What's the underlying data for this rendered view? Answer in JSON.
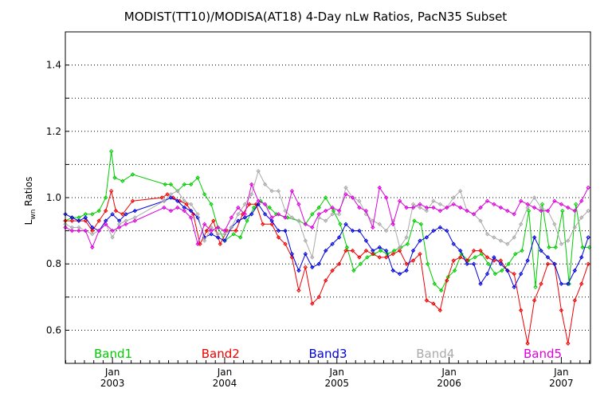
{
  "chart_data": {
    "type": "line",
    "title": "MODIST(TT10)/MODISA(AT18) 4-Day nLw Ratios, PacN35 Subset",
    "ylabel_main": "L",
    "ylabel_sub": "wn",
    "ylabel_rest": " Ratios",
    "ylim": [
      0.5,
      1.5
    ],
    "yticks": [
      "0.6",
      "0.8",
      "1.0",
      "1.2",
      "1.4"
    ],
    "ytick_values": [
      0.6,
      0.8,
      1.0,
      1.2,
      1.4
    ],
    "xlim": [
      2002.58,
      2007.26
    ],
    "xticks": [
      {
        "month": "Jan",
        "year": "2003",
        "x": 2003.0
      },
      {
        "month": "Jan",
        "year": "2004",
        "x": 2004.0
      },
      {
        "month": "Jan",
        "year": "2005",
        "x": 2005.0
      },
      {
        "month": "Jan",
        "year": "2006",
        "x": 2006.0
      },
      {
        "month": "Jan",
        "year": "2007",
        "x": 2007.0
      }
    ],
    "grid": true,
    "legend_position": "bottom",
    "series": [
      {
        "name": "Band1",
        "color": "#00cc00",
        "x": [
          2002.58,
          2002.64,
          2002.7,
          2002.76,
          2002.82,
          2002.88,
          2002.94,
          2002.99,
          2003.02,
          2003.09,
          2003.18,
          2003.47,
          2003.52,
          2003.58,
          2003.64,
          2003.7,
          2003.76,
          2003.82,
          2003.88,
          2003.94,
          2004.0,
          2004.08,
          2004.14,
          2004.2,
          2004.26,
          2004.32,
          2004.4,
          2004.46,
          2004.56,
          2004.66,
          2004.72,
          2004.78,
          2004.84,
          2004.9,
          2004.97,
          2005.03,
          2005.09,
          2005.15,
          2005.21,
          2005.27,
          2005.33,
          2005.39,
          2005.45,
          2005.51,
          2005.57,
          2005.63,
          2005.69,
          2005.75,
          2005.81,
          2005.87,
          2005.93,
          2005.99,
          2006.05,
          2006.11,
          2006.17,
          2006.23,
          2006.29,
          2006.35,
          2006.41,
          2006.47,
          2006.53,
          2006.59,
          2006.65,
          2006.71,
          2006.77,
          2006.83,
          2006.89,
          2006.95,
          2007.01,
          2007.07,
          2007.13,
          2007.19,
          2007.25
        ],
        "values": [
          0.93,
          0.94,
          0.94,
          0.95,
          0.95,
          0.96,
          1.0,
          1.14,
          1.06,
          1.05,
          1.07,
          1.04,
          1.04,
          1.02,
          1.04,
          1.04,
          1.06,
          1.01,
          0.98,
          0.91,
          0.87,
          0.89,
          0.88,
          0.93,
          0.97,
          0.99,
          0.97,
          0.95,
          0.94,
          0.93,
          0.92,
          0.95,
          0.97,
          1.0,
          0.96,
          0.92,
          0.85,
          0.78,
          0.8,
          0.82,
          0.83,
          0.84,
          0.83,
          0.84,
          0.85,
          0.86,
          0.93,
          0.92,
          0.8,
          0.74,
          0.72,
          0.76,
          0.78,
          0.83,
          0.81,
          0.82,
          0.83,
          0.8,
          0.77,
          0.78,
          0.8,
          0.83,
          0.84,
          0.96,
          0.73,
          0.98,
          0.85,
          0.85,
          0.96,
          0.74,
          0.98,
          0.85,
          0.85
        ]
      },
      {
        "name": "Band2",
        "color": "#ee0000",
        "x": [
          2002.58,
          2002.64,
          2002.7,
          2002.76,
          2002.82,
          2002.88,
          2002.94,
          2002.99,
          2003.03,
          2003.09,
          2003.18,
          2003.44,
          2003.49,
          2003.54,
          2003.6,
          2003.66,
          2003.72,
          2003.78,
          2003.84,
          2003.9,
          2003.96,
          2004.02,
          2004.1,
          2004.16,
          2004.22,
          2004.28,
          2004.34,
          2004.42,
          2004.48,
          2004.54,
          2004.6,
          2004.66,
          2004.72,
          2004.78,
          2004.84,
          2004.9,
          2004.96,
          2005.02,
          2005.08,
          2005.14,
          2005.2,
          2005.26,
          2005.32,
          2005.38,
          2005.44,
          2005.5,
          2005.56,
          2005.62,
          2005.68,
          2005.74,
          2005.8,
          2005.86,
          2005.92,
          2005.98,
          2006.04,
          2006.1,
          2006.16,
          2006.22,
          2006.28,
          2006.34,
          2006.4,
          2006.46,
          2006.52,
          2006.58,
          2006.64,
          2006.7,
          2006.76,
          2006.82,
          2006.88,
          2006.94,
          2007.0,
          2007.06,
          2007.12,
          2007.18,
          2007.24
        ],
        "values": [
          0.93,
          0.93,
          0.93,
          0.93,
          0.9,
          0.93,
          0.96,
          1.02,
          0.96,
          0.95,
          0.99,
          1.0,
          1.01,
          1.0,
          0.99,
          0.98,
          0.95,
          0.86,
          0.9,
          0.93,
          0.86,
          0.9,
          0.9,
          0.95,
          0.98,
          0.98,
          0.92,
          0.92,
          0.88,
          0.86,
          0.82,
          0.72,
          0.79,
          0.68,
          0.7,
          0.75,
          0.78,
          0.8,
          0.84,
          0.84,
          0.82,
          0.84,
          0.83,
          0.82,
          0.82,
          0.83,
          0.84,
          0.8,
          0.81,
          0.83,
          0.69,
          0.68,
          0.66,
          0.75,
          0.81,
          0.82,
          0.81,
          0.84,
          0.84,
          0.82,
          0.81,
          0.81,
          0.78,
          0.77,
          0.66,
          0.56,
          0.69,
          0.74,
          0.8,
          0.8,
          0.66,
          0.56,
          0.69,
          0.74,
          0.8
        ]
      },
      {
        "name": "Band3",
        "color": "#0000dd",
        "x": [
          2002.58,
          2002.64,
          2002.7,
          2002.76,
          2002.82,
          2002.88,
          2002.94,
          2003.0,
          2003.06,
          2003.12,
          2003.2,
          2003.46,
          2003.52,
          2003.58,
          2003.64,
          2003.7,
          2003.76,
          2003.82,
          2003.88,
          2003.94,
          2004.0,
          2004.06,
          2004.12,
          2004.18,
          2004.24,
          2004.3,
          2004.36,
          2004.42,
          2004.48,
          2004.54,
          2004.6,
          2004.66,
          2004.72,
          2004.78,
          2004.84,
          2004.9,
          2004.96,
          2005.02,
          2005.08,
          2005.14,
          2005.2,
          2005.26,
          2005.32,
          2005.38,
          2005.44,
          2005.5,
          2005.56,
          2005.62,
          2005.68,
          2005.74,
          2005.8,
          2005.86,
          2005.92,
          2005.98,
          2006.04,
          2006.1,
          2006.16,
          2006.22,
          2006.28,
          2006.34,
          2006.4,
          2006.46,
          2006.52,
          2006.58,
          2006.64,
          2006.7,
          2006.76,
          2006.82,
          2006.88,
          2006.94,
          2007.0,
          2007.06,
          2007.12,
          2007.18,
          2007.24
        ],
        "values": [
          0.95,
          0.94,
          0.93,
          0.94,
          0.91,
          0.9,
          0.93,
          0.95,
          0.93,
          0.95,
          0.96,
          0.99,
          1.0,
          0.99,
          0.97,
          0.96,
          0.94,
          0.88,
          0.89,
          0.88,
          0.87,
          0.91,
          0.93,
          0.94,
          0.95,
          0.98,
          0.95,
          0.93,
          0.9,
          0.9,
          0.83,
          0.78,
          0.83,
          0.79,
          0.8,
          0.84,
          0.86,
          0.88,
          0.92,
          0.9,
          0.9,
          0.87,
          0.84,
          0.85,
          0.84,
          0.78,
          0.77,
          0.78,
          0.84,
          0.87,
          0.88,
          0.9,
          0.91,
          0.9,
          0.86,
          0.84,
          0.8,
          0.8,
          0.74,
          0.77,
          0.82,
          0.8,
          0.78,
          0.73,
          0.77,
          0.81,
          0.88,
          0.84,
          0.82,
          0.8,
          0.74,
          0.74,
          0.78,
          0.82,
          0.88
        ]
      },
      {
        "name": "Band4",
        "color": "#aaaaaa",
        "x": [
          2002.58,
          2002.64,
          2002.7,
          2002.76,
          2002.82,
          2002.88,
          2002.94,
          2003.0,
          2003.06,
          2003.12,
          2003.2,
          2003.46,
          2003.52,
          2003.58,
          2003.64,
          2003.7,
          2003.76,
          2003.82,
          2003.88,
          2003.94,
          2004.0,
          2004.06,
          2004.12,
          2004.18,
          2004.24,
          2004.3,
          2004.36,
          2004.42,
          2004.48,
          2004.54,
          2004.6,
          2004.66,
          2004.72,
          2004.78,
          2004.84,
          2004.9,
          2004.96,
          2005.02,
          2005.08,
          2005.14,
          2005.2,
          2005.26,
          2005.32,
          2005.38,
          2005.44,
          2005.5,
          2005.56,
          2005.62,
          2005.68,
          2005.74,
          2005.8,
          2005.86,
          2005.92,
          2005.98,
          2006.04,
          2006.1,
          2006.16,
          2006.22,
          2006.28,
          2006.34,
          2006.4,
          2006.46,
          2006.52,
          2006.58,
          2006.64,
          2006.7,
          2006.76,
          2006.82,
          2006.88,
          2006.94,
          2007.0,
          2007.06,
          2007.12,
          2007.18,
          2007.24
        ],
        "values": [
          0.92,
          0.91,
          0.91,
          0.9,
          0.89,
          0.9,
          0.92,
          0.88,
          0.92,
          0.93,
          0.94,
          0.99,
          1.01,
          1.02,
          0.99,
          0.98,
          0.95,
          0.87,
          0.91,
          0.89,
          0.89,
          0.91,
          0.95,
          0.98,
          1.01,
          1.08,
          1.04,
          1.02,
          1.02,
          0.96,
          0.94,
          0.93,
          0.87,
          0.82,
          0.94,
          0.93,
          0.95,
          0.95,
          1.03,
          1.0,
          0.99,
          0.95,
          0.93,
          0.92,
          0.9,
          0.93,
          0.85,
          0.88,
          0.98,
          0.97,
          0.96,
          0.99,
          0.98,
          0.97,
          1.0,
          1.02,
          0.96,
          0.95,
          0.93,
          0.89,
          0.88,
          0.87,
          0.86,
          0.88,
          0.92,
          0.97,
          1.0,
          0.97,
          0.96,
          0.92,
          0.86,
          0.87,
          0.91,
          0.94,
          0.96
        ]
      },
      {
        "name": "Band5",
        "color": "#dd00dd",
        "x": [
          2002.58,
          2002.64,
          2002.7,
          2002.76,
          2002.82,
          2002.88,
          2002.94,
          2003.0,
          2003.06,
          2003.12,
          2003.2,
          2003.46,
          2003.52,
          2003.58,
          2003.64,
          2003.7,
          2003.76,
          2003.82,
          2003.88,
          2003.94,
          2004.0,
          2004.06,
          2004.12,
          2004.18,
          2004.24,
          2004.3,
          2004.36,
          2004.42,
          2004.48,
          2004.54,
          2004.6,
          2004.66,
          2004.72,
          2004.78,
          2004.84,
          2004.9,
          2004.96,
          2005.02,
          2005.08,
          2005.14,
          2005.2,
          2005.26,
          2005.32,
          2005.38,
          2005.44,
          2005.5,
          2005.56,
          2005.62,
          2005.68,
          2005.74,
          2005.8,
          2005.86,
          2005.92,
          2005.98,
          2006.04,
          2006.1,
          2006.16,
          2006.22,
          2006.28,
          2006.34,
          2006.4,
          2006.46,
          2006.52,
          2006.58,
          2006.64,
          2006.7,
          2006.76,
          2006.82,
          2006.88,
          2006.94,
          2007.0,
          2007.06,
          2007.12,
          2007.18,
          2007.24
        ],
        "values": [
          0.91,
          0.9,
          0.9,
          0.9,
          0.85,
          0.9,
          0.92,
          0.9,
          0.91,
          0.92,
          0.93,
          0.97,
          0.96,
          0.97,
          0.96,
          0.94,
          0.86,
          0.92,
          0.9,
          0.91,
          0.9,
          0.94,
          0.97,
          0.95,
          1.04,
          0.99,
          0.98,
          0.94,
          0.95,
          0.94,
          1.02,
          0.98,
          0.92,
          0.91,
          0.95,
          0.96,
          0.97,
          0.96,
          1.01,
          1.0,
          0.97,
          0.96,
          0.91,
          1.03,
          1.0,
          0.92,
          0.99,
          0.97,
          0.97,
          0.98,
          0.97,
          0.97,
          0.96,
          0.97,
          0.98,
          0.97,
          0.96,
          0.95,
          0.97,
          0.99,
          0.98,
          0.97,
          0.96,
          0.95,
          0.99,
          0.98,
          0.97,
          0.96,
          0.96,
          0.99,
          0.98,
          0.97,
          0.96,
          0.99,
          1.03
        ]
      }
    ]
  }
}
